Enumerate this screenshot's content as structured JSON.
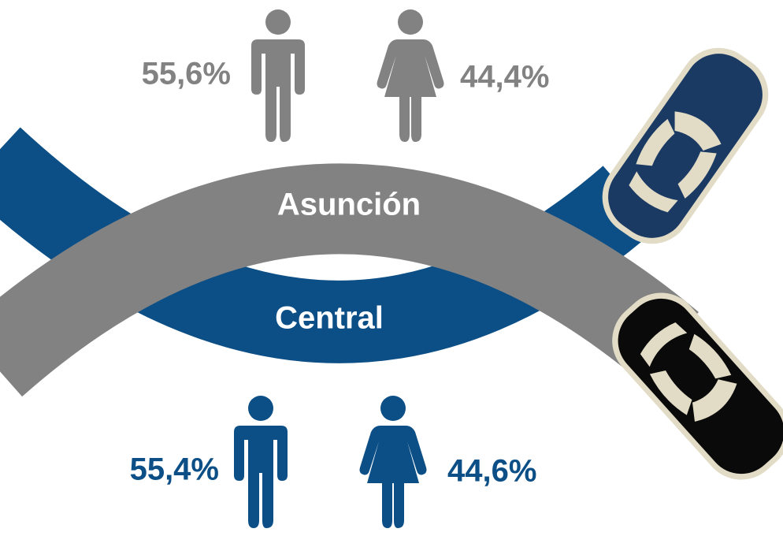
{
  "regions": [
    {
      "name": "Asunción",
      "male": "55,6%",
      "female": "44,4%"
    },
    {
      "name": "Central",
      "male": "55,4%",
      "female": "44,6%"
    }
  ]
}
